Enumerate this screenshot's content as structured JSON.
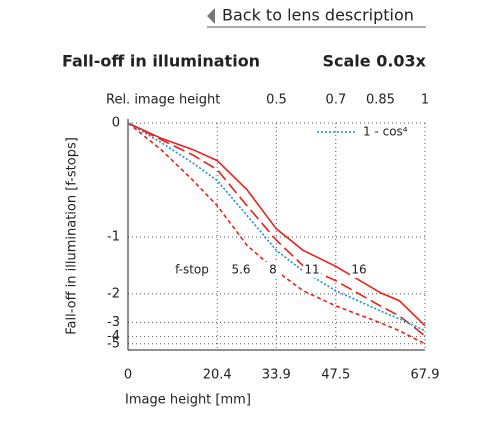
{
  "link": {
    "text": "Back to lens description"
  },
  "chart_data": {
    "type": "line",
    "title": "Fall-off in illumination",
    "subtitle": "Scale 0.03x",
    "xlabel": "Image height [mm]",
    "ylabel": "Fall-off in illumination [f-stops]",
    "x2label": "Rel. image height",
    "x": [
      0,
      7.6,
      14.9,
      20.4,
      27.2,
      33.9,
      40,
      47.5,
      57.7,
      62,
      67.9
    ],
    "xlim": [
      0,
      67.9
    ],
    "xticks": [
      0,
      20.4,
      33.9,
      47.5,
      67.9
    ],
    "x2lim": [
      0,
      1
    ],
    "x2ticks": [
      0.5,
      0.7,
      0.85,
      1
    ],
    "ylim": [
      -8,
      0
    ],
    "yticks": [
      0,
      -1,
      -2,
      -3,
      -4,
      -5
    ],
    "yscale": "exposure",
    "grid": true,
    "legend": "top-right",
    "annotations": [
      "f-stop",
      "5.6",
      "8",
      "11",
      "16"
    ],
    "series": [
      {
        "color": "#e8221c",
        "style": "solid",
        "values": [
          0,
          -0.1,
          -0.18,
          -0.26,
          -0.5,
          -0.9,
          -1.18,
          -1.43,
          -1.97,
          -2.18,
          -3.18
        ]
      },
      {
        "color": "#e8221c",
        "style": "dashed",
        "values": [
          0,
          -0.11,
          -0.22,
          -0.33,
          -0.65,
          -1.04,
          -1.42,
          -1.7,
          -2.34,
          -2.7,
          -3.92
        ]
      },
      {
        "color": "#e8221c",
        "style": "short-dashed",
        "values": [
          0,
          -0.18,
          -0.42,
          -0.65,
          -1.11,
          -1.51,
          -1.92,
          -2.34,
          -3.02,
          -3.5,
          -5.0
        ]
      },
      {
        "name": "1 - cos⁴",
        "color": "#1a8fd0",
        "style": "dotted",
        "values": [
          0,
          -0.13,
          -0.28,
          -0.42,
          -0.75,
          -1.18,
          -1.51,
          -1.92,
          -2.51,
          -2.83,
          -3.5
        ]
      }
    ]
  }
}
